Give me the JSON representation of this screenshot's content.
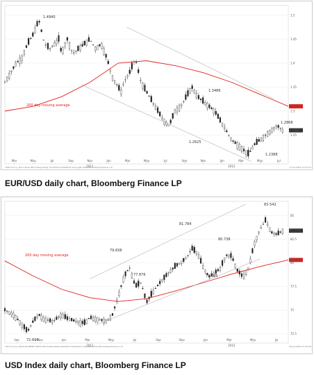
{
  "charts": [
    {
      "caption": "EUR/USD daily chart, Bloomberg Finance LP",
      "ma_label": "200 day moving average",
      "ma_color": "#e0201b",
      "ma_tag": "1.3115",
      "last_tag": "1.2650",
      "footer_left": "EUR Curncy (Euro Spot) Bloomberg Daily 7/21/2010-7/20/2012 Copyright 2012 Bloomberg Finance L.P.",
      "footer_right": "17-Jul-2012 17:57:57"
    },
    {
      "caption": "USD Index daily chart, Bloomberg Finance LP",
      "ma_label": "200 day moving average",
      "ma_color": "#e0201b",
      "ma_tag": "80.3120",
      "last_tag": "83.3730",
      "footer_left": "DXY Curncy (DOLLAR INDEX SPOT) Bloomberg Daily 9/9/2010-7/20/2012 Copyright 2012 Bloomberg Finance L.P.",
      "footer_right": "04-Jul-2012 07:41:49"
    }
  ],
  "chart_data": [
    {
      "type": "candlestick",
      "title": "EUR/USD daily chart, Bloomberg Finance LP",
      "x_ticks": [
        "Mar",
        "May",
        "Jul",
        "Sep",
        "Nov",
        "Jan",
        "Mar",
        "May",
        "Jul",
        "Sep",
        "Nov",
        "Jan",
        "Mar",
        "May",
        "Jul"
      ],
      "x_year_labels": [
        "2011",
        "2012"
      ],
      "y_ticks": [
        1.5,
        1.45,
        1.4,
        1.35,
        1.3,
        1.25
      ],
      "ylim": [
        1.19,
        1.52
      ],
      "series": [
        {
          "name": "EUR/USD",
          "x": [
            0,
            0.02,
            0.04,
            0.06,
            0.08,
            0.1,
            0.12,
            0.14,
            0.16,
            0.19,
            0.2,
            0.22,
            0.24,
            0.26,
            0.28,
            0.3,
            0.32,
            0.34,
            0.36,
            0.38,
            0.41,
            0.42,
            0.44,
            0.46,
            0.48,
            0.5,
            0.52,
            0.54,
            0.56,
            0.58,
            0.6,
            0.62,
            0.64,
            0.66,
            0.68,
            0.7,
            0.72,
            0.74,
            0.76,
            0.78,
            0.8,
            0.82,
            0.84,
            0.86,
            0.88,
            0.9,
            0.92,
            0.94,
            0.96,
            0.98
          ],
          "values": [
            1.36,
            1.38,
            1.4,
            1.41,
            1.44,
            1.46,
            1.49,
            1.44,
            1.43,
            1.45,
            1.42,
            1.45,
            1.42,
            1.43,
            1.44,
            1.45,
            1.43,
            1.44,
            1.41,
            1.37,
            1.34,
            1.36,
            1.38,
            1.41,
            1.36,
            1.34,
            1.32,
            1.3,
            1.28,
            1.27,
            1.3,
            1.31,
            1.33,
            1.35,
            1.33,
            1.32,
            1.31,
            1.3,
            1.28,
            1.26,
            1.24,
            1.23,
            1.22,
            1.21,
            1.23,
            1.24,
            1.25,
            1.26,
            1.27,
            1.26
          ]
        },
        {
          "name": "200 day moving average",
          "x": [
            0,
            0.1,
            0.2,
            0.3,
            0.4,
            0.5,
            0.6,
            0.7,
            0.8,
            0.9,
            1
          ],
          "values": [
            1.3,
            1.31,
            1.33,
            1.36,
            1.4,
            1.405,
            1.395,
            1.38,
            1.36,
            1.335,
            1.31
          ]
        }
      ],
      "annotations": [
        "1.4940",
        "1.3486",
        "1.2625",
        "1.2868",
        "1.2388"
      ],
      "trend_channel": "down"
    },
    {
      "type": "candlestick",
      "title": "USD Index daily chart, Bloomberg Finance LP",
      "x_ticks": [
        "Sep",
        "Nov",
        "Jan",
        "Mar",
        "May",
        "Jul",
        "Sep",
        "Nov",
        "Jan",
        "Mar",
        "May",
        "Jul"
      ],
      "x_year_labels": [
        "2011",
        "2012"
      ],
      "y_ticks": [
        85,
        82.5,
        80,
        77.5,
        75,
        72.5
      ],
      "ylim": [
        71.5,
        86.5
      ],
      "series": [
        {
          "name": "USD Index",
          "x": [
            0,
            0.03,
            0.06,
            0.08,
            0.1,
            0.12,
            0.14,
            0.17,
            0.2,
            0.22,
            0.25,
            0.28,
            0.3,
            0.33,
            0.36,
            0.38,
            0.4,
            0.42,
            0.44,
            0.46,
            0.48,
            0.5,
            0.52,
            0.55,
            0.58,
            0.6,
            0.62,
            0.64,
            0.66,
            0.68,
            0.7,
            0.72,
            0.74,
            0.76,
            0.78,
            0.8,
            0.82,
            0.84,
            0.86,
            0.88,
            0.9,
            0.92,
            0.94,
            0.96,
            0.98
          ],
          "values": [
            75,
            74.5,
            73.5,
            72.7,
            73.8,
            74.5,
            74,
            73.8,
            74.5,
            74.1,
            73.8,
            73.6,
            74.2,
            74,
            73.8,
            74.5,
            76.5,
            78.5,
            79.5,
            77.5,
            77.9,
            75.8,
            76.8,
            78,
            79,
            79.6,
            80,
            80.5,
            81.5,
            81,
            79.5,
            78.5,
            78.9,
            79.4,
            80.8,
            80.7,
            79.2,
            78.5,
            79.5,
            82,
            83.5,
            84.5,
            83.2,
            83,
            83.4
          ]
        },
        {
          "name": "200 day moving average",
          "x": [
            0,
            0.1,
            0.2,
            0.3,
            0.4,
            0.5,
            0.6,
            0.7,
            0.8,
            0.9,
            1
          ],
          "values": [
            80.2,
            78.6,
            77.2,
            76.3,
            75.9,
            76.2,
            77,
            77.9,
            78.8,
            79.6,
            80.3
          ]
        }
      ],
      "annotations": [
        "72.696",
        "79.838",
        "77.876",
        "81.784",
        "80.738",
        "78.095",
        "83.542"
      ],
      "trend_channel": "up"
    }
  ]
}
